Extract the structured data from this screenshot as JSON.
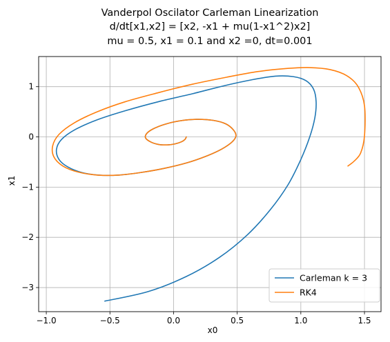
{
  "chart_data": {
    "type": "line",
    "title_lines": [
      "Vanderpol Oscilator Carleman Linearization",
      "d/dt[x1,x2] = [x2, -x1 + mu(1-x1^2)x2]",
      "mu = 0.5, x1 = 0.1 and x2 =0, dt=0.001"
    ],
    "xlabel": "x0",
    "ylabel": "x1",
    "xlim": [
      -1.06,
      1.63
    ],
    "ylim": [
      -3.48,
      1.6
    ],
    "xticks": [
      -1.0,
      -0.5,
      0.0,
      0.5,
      1.0,
      1.5
    ],
    "xtick_labels": [
      "−1.0",
      "−0.5",
      "0.0",
      "0.5",
      "1.0",
      "1.5"
    ],
    "yticks": [
      -3,
      -2,
      -1,
      0,
      1
    ],
    "ytick_labels": [
      "−3",
      "−2",
      "−1",
      "0",
      "1"
    ],
    "grid": true,
    "legend_position": "lower right",
    "series": [
      {
        "name": "Carleman k = 3",
        "color": "#1f77b4",
        "x": [
          0.1,
          0.09,
          0.06,
          0.01,
          -0.05,
          -0.12,
          -0.18,
          -0.22,
          -0.21,
          -0.16,
          -0.07,
          0.05,
          0.18,
          0.31,
          0.41,
          0.47,
          0.49,
          0.46,
          0.38,
          0.26,
          0.1,
          -0.08,
          -0.26,
          -0.43,
          -0.59,
          -0.72,
          -0.83,
          -0.9,
          -0.92,
          -0.88,
          -0.77,
          -0.6,
          -0.38,
          -0.12,
          0.15,
          0.4,
          0.62,
          0.8,
          0.94,
          1.04,
          1.1,
          1.12,
          1.11,
          1.07,
          1.0,
          0.9,
          0.76,
          0.58,
          0.36,
          0.1,
          -0.2,
          -0.54
        ],
        "y": [
          0.0,
          -0.05,
          -0.1,
          -0.14,
          -0.16,
          -0.15,
          -0.1,
          -0.02,
          0.07,
          0.16,
          0.25,
          0.32,
          0.35,
          0.33,
          0.26,
          0.14,
          0.02,
          -0.1,
          -0.24,
          -0.38,
          -0.52,
          -0.63,
          -0.71,
          -0.76,
          -0.76,
          -0.71,
          -0.6,
          -0.45,
          -0.25,
          -0.05,
          0.15,
          0.34,
          0.52,
          0.7,
          0.86,
          1.02,
          1.14,
          1.21,
          1.2,
          1.12,
          0.95,
          0.7,
          0.38,
          0.0,
          -0.45,
          -0.95,
          -1.45,
          -1.95,
          -2.4,
          -2.78,
          -3.08,
          -3.27
        ]
      },
      {
        "name": "RK4",
        "color": "#ff7f0e",
        "x": [
          0.1,
          0.09,
          0.06,
          0.01,
          -0.05,
          -0.12,
          -0.18,
          -0.22,
          -0.21,
          -0.16,
          -0.07,
          0.05,
          0.18,
          0.31,
          0.41,
          0.47,
          0.49,
          0.46,
          0.38,
          0.26,
          0.1,
          -0.08,
          -0.26,
          -0.43,
          -0.6,
          -0.75,
          -0.87,
          -0.94,
          -0.95,
          -0.9,
          -0.78,
          -0.6,
          -0.38,
          -0.12,
          0.15,
          0.42,
          0.66,
          0.88,
          1.07,
          1.23,
          1.36,
          1.45,
          1.5,
          1.5,
          1.47,
          1.42,
          1.37
        ],
        "y": [
          0.0,
          -0.05,
          -0.1,
          -0.14,
          -0.16,
          -0.15,
          -0.1,
          -0.02,
          0.07,
          0.16,
          0.25,
          0.32,
          0.35,
          0.33,
          0.26,
          0.14,
          0.02,
          -0.1,
          -0.24,
          -0.38,
          -0.52,
          -0.63,
          -0.71,
          -0.76,
          -0.76,
          -0.7,
          -0.58,
          -0.4,
          -0.18,
          0.05,
          0.28,
          0.5,
          0.7,
          0.88,
          1.05,
          1.19,
          1.3,
          1.36,
          1.38,
          1.34,
          1.22,
          1.0,
          0.62,
          0.02,
          -0.32,
          -0.48,
          -0.58
        ]
      }
    ]
  }
}
